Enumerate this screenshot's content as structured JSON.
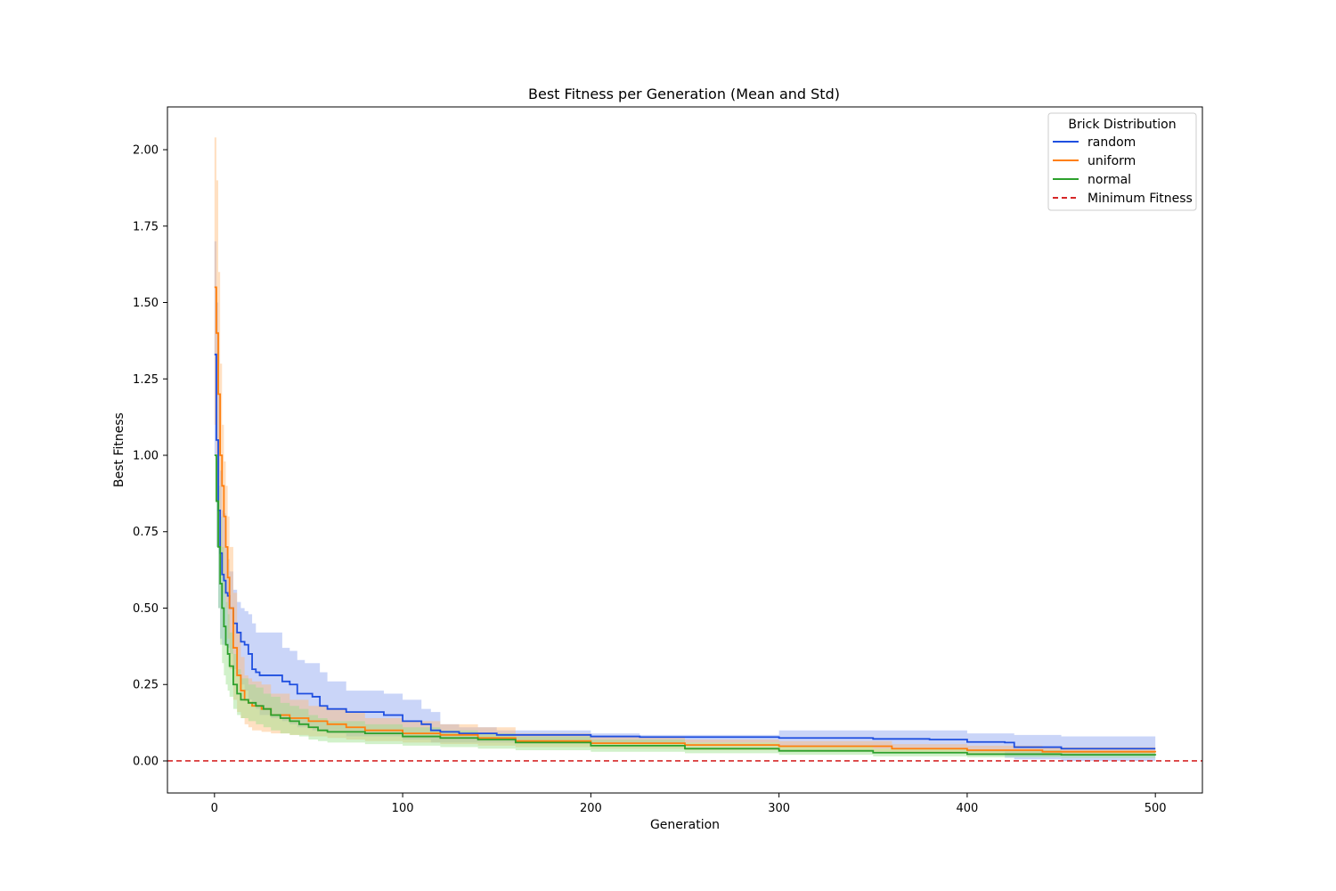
{
  "chart_data": {
    "type": "line",
    "title": "Best Fitness per Generation (Mean and Std)",
    "xlabel": "Generation",
    "ylabel": "Best Fitness",
    "xlim": [
      -25,
      525
    ],
    "ylim": [
      -0.105,
      2.14
    ],
    "xticks": [
      0,
      100,
      200,
      300,
      400,
      500
    ],
    "xtick_labels": [
      "0",
      "100",
      "200",
      "300",
      "400",
      "500"
    ],
    "yticks": [
      0,
      0.25,
      0.5,
      0.75,
      1.0,
      1.25,
      1.5,
      1.75,
      2.0
    ],
    "ytick_labels": [
      "0.00",
      "0.25",
      "0.50",
      "0.75",
      "1.00",
      "1.25",
      "1.50",
      "1.75",
      "2.00"
    ],
    "grid": false,
    "legend": {
      "title": "Brick Distribution",
      "position": "top-right",
      "entries": [
        "random",
        "uniform",
        "normal",
        "Minimum Fitness"
      ]
    },
    "reference_line": {
      "name": "Minimum Fitness",
      "y": 0,
      "color": "#d62728",
      "style": "dashed"
    },
    "series": [
      {
        "name": "random",
        "color": "#1f4fe0",
        "band_color": "#8aa2f0",
        "x": [
          0,
          1,
          2,
          3,
          4,
          5,
          6,
          7,
          8,
          10,
          12,
          14,
          16,
          18,
          20,
          22,
          24,
          26,
          30,
          36,
          40,
          44,
          48,
          52,
          56,
          60,
          70,
          80,
          90,
          100,
          110,
          115,
          120,
          130,
          150,
          200,
          226,
          300,
          350,
          380,
          400,
          420,
          425,
          450,
          500
        ],
        "values": [
          1.33,
          1.05,
          0.82,
          0.68,
          0.61,
          0.59,
          0.55,
          0.54,
          0.5,
          0.45,
          0.42,
          0.39,
          0.38,
          0.35,
          0.3,
          0.29,
          0.28,
          0.28,
          0.28,
          0.26,
          0.25,
          0.22,
          0.22,
          0.21,
          0.18,
          0.17,
          0.16,
          0.16,
          0.15,
          0.13,
          0.12,
          0.1,
          0.095,
          0.09,
          0.085,
          0.08,
          0.078,
          0.075,
          0.072,
          0.07,
          0.062,
          0.06,
          0.045,
          0.04,
          0.04
        ],
        "upper": [
          1.7,
          1.5,
          1.2,
          0.95,
          0.82,
          0.81,
          0.7,
          0.66,
          0.62,
          0.56,
          0.52,
          0.5,
          0.49,
          0.48,
          0.45,
          0.42,
          0.42,
          0.42,
          0.42,
          0.37,
          0.36,
          0.33,
          0.32,
          0.32,
          0.29,
          0.26,
          0.23,
          0.23,
          0.22,
          0.2,
          0.17,
          0.16,
          0.12,
          0.11,
          0.1,
          0.09,
          0.085,
          0.1,
          0.1,
          0.1,
          0.09,
          0.09,
          0.085,
          0.08,
          0.08
        ],
        "lower": [
          1.0,
          0.7,
          0.5,
          0.4,
          0.38,
          0.38,
          0.38,
          0.37,
          0.35,
          0.3,
          0.28,
          0.25,
          0.23,
          0.2,
          0.18,
          0.17,
          0.15,
          0.15,
          0.14,
          0.13,
          0.12,
          0.11,
          0.11,
          0.1,
          0.1,
          0.09,
          0.08,
          0.08,
          0.08,
          0.07,
          0.07,
          0.06,
          0.06,
          0.06,
          0.06,
          0.06,
          0.06,
          0.05,
          0.04,
          0.04,
          0.03,
          0.01,
          0.005,
          0.0,
          0.0
        ]
      },
      {
        "name": "uniform",
        "color": "#ff7f0e",
        "band_color": "#ffbb78",
        "x": [
          0,
          1,
          2,
          3,
          4,
          5,
          6,
          7,
          8,
          10,
          12,
          14,
          16,
          18,
          20,
          25,
          30,
          40,
          50,
          60,
          70,
          80,
          100,
          120,
          140,
          160,
          200,
          250,
          300,
          360,
          400,
          440,
          500
        ],
        "values": [
          1.55,
          1.4,
          1.2,
          1.0,
          0.9,
          0.8,
          0.7,
          0.6,
          0.5,
          0.37,
          0.28,
          0.23,
          0.2,
          0.19,
          0.18,
          0.17,
          0.15,
          0.14,
          0.13,
          0.12,
          0.11,
          0.1,
          0.09,
          0.085,
          0.075,
          0.065,
          0.058,
          0.052,
          0.048,
          0.04,
          0.035,
          0.03,
          0.028
        ],
        "upper": [
          2.04,
          1.9,
          1.6,
          1.3,
          1.1,
          0.98,
          0.9,
          0.8,
          0.7,
          0.55,
          0.42,
          0.34,
          0.28,
          0.27,
          0.26,
          0.25,
          0.22,
          0.2,
          0.18,
          0.17,
          0.16,
          0.14,
          0.13,
          0.12,
          0.11,
          0.09,
          0.08,
          0.07,
          0.065,
          0.055,
          0.05,
          0.045,
          0.04
        ],
        "lower": [
          1.1,
          0.95,
          0.8,
          0.65,
          0.6,
          0.55,
          0.5,
          0.4,
          0.3,
          0.2,
          0.16,
          0.14,
          0.12,
          0.11,
          0.1,
          0.095,
          0.09,
          0.085,
          0.08,
          0.075,
          0.07,
          0.065,
          0.06,
          0.055,
          0.05,
          0.045,
          0.04,
          0.035,
          0.03,
          0.025,
          0.02,
          0.018,
          0.016
        ]
      },
      {
        "name": "normal",
        "color": "#2ca02c",
        "band_color": "#98df8a",
        "x": [
          0,
          1,
          2,
          3,
          4,
          5,
          6,
          7,
          8,
          10,
          12,
          14,
          18,
          22,
          26,
          30,
          35,
          40,
          45,
          50,
          55,
          60,
          80,
          100,
          120,
          140,
          160,
          200,
          250,
          300,
          350,
          400,
          450,
          500
        ],
        "values": [
          1.0,
          0.85,
          0.7,
          0.58,
          0.5,
          0.44,
          0.38,
          0.35,
          0.31,
          0.25,
          0.22,
          0.2,
          0.19,
          0.18,
          0.17,
          0.15,
          0.14,
          0.13,
          0.12,
          0.11,
          0.1,
          0.095,
          0.09,
          0.08,
          0.075,
          0.07,
          0.06,
          0.05,
          0.04,
          0.033,
          0.027,
          0.022,
          0.02,
          0.018
        ],
        "upper": [
          1.0,
          0.98,
          0.9,
          0.8,
          0.7,
          0.6,
          0.52,
          0.48,
          0.42,
          0.35,
          0.3,
          0.27,
          0.25,
          0.24,
          0.22,
          0.21,
          0.19,
          0.18,
          0.17,
          0.15,
          0.14,
          0.13,
          0.12,
          0.11,
          0.1,
          0.09,
          0.08,
          0.07,
          0.06,
          0.05,
          0.04,
          0.035,
          0.03,
          0.03
        ],
        "lower": [
          1.0,
          0.7,
          0.5,
          0.38,
          0.32,
          0.28,
          0.25,
          0.23,
          0.21,
          0.17,
          0.15,
          0.14,
          0.13,
          0.12,
          0.11,
          0.1,
          0.09,
          0.085,
          0.08,
          0.07,
          0.065,
          0.06,
          0.055,
          0.05,
          0.045,
          0.04,
          0.035,
          0.03,
          0.025,
          0.02,
          0.015,
          0.012,
          0.01,
          0.01
        ]
      }
    ]
  }
}
